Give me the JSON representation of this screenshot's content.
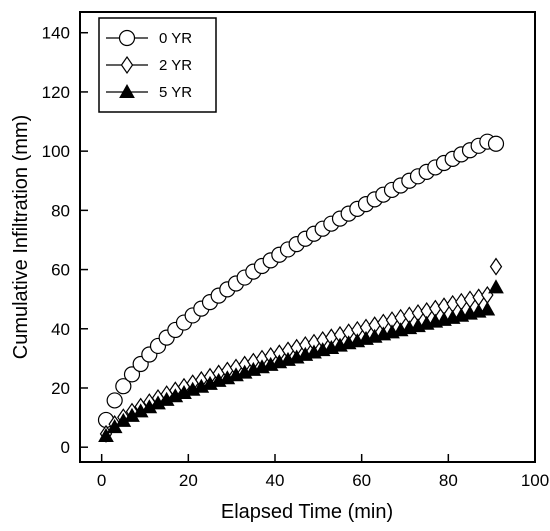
{
  "chart_data": {
    "type": "scatter",
    "xlabel": "Elapsed Time (min)",
    "ylabel": "Cumulative Infiltration (mm)",
    "xlim": [
      -5,
      100
    ],
    "ylim": [
      -5,
      147
    ],
    "xticks": [
      0,
      20,
      40,
      60,
      80,
      100
    ],
    "yticks": [
      0,
      20,
      40,
      60,
      80,
      100,
      120,
      140
    ],
    "grid": false,
    "legend_position": "top-left",
    "x": [
      1,
      3,
      5,
      7,
      9,
      11,
      13,
      15,
      17,
      19,
      21,
      23,
      25,
      27,
      29,
      31,
      33,
      35,
      37,
      39,
      41,
      43,
      45,
      47,
      49,
      51,
      53,
      55,
      57,
      59,
      61,
      63,
      65,
      67,
      69,
      71,
      73,
      75,
      77,
      79,
      81,
      83,
      85,
      87,
      89,
      91
    ],
    "series": [
      {
        "name": "0 YR",
        "marker": "circle-open",
        "values": [
          9.2,
          15.8,
          20.6,
          24.6,
          28.1,
          31.3,
          34.2,
          37.0,
          39.6,
          42.1,
          44.5,
          46.8,
          49.0,
          51.2,
          53.3,
          55.3,
          57.3,
          59.3,
          61.2,
          63.1,
          65.0,
          66.8,
          68.6,
          70.4,
          72.1,
          73.8,
          75.5,
          77.2,
          78.9,
          80.5,
          82.1,
          83.7,
          85.3,
          86.9,
          88.4,
          90.0,
          91.5,
          93.0,
          94.5,
          96.0,
          97.4,
          98.9,
          100.3,
          101.8,
          103.2,
          102.5
        ]
      },
      {
        "name": "2 YR",
        "marker": "diamond-open",
        "values": [
          4.5,
          7.8,
          10.1,
          12.0,
          13.7,
          15.2,
          16.6,
          17.9,
          19.2,
          20.4,
          21.6,
          22.7,
          23.8,
          24.9,
          25.9,
          26.9,
          27.9,
          28.9,
          29.9,
          30.8,
          31.7,
          32.7,
          33.6,
          34.5,
          35.3,
          36.2,
          37.1,
          37.9,
          38.8,
          39.6,
          40.4,
          41.2,
          42.1,
          42.9,
          43.7,
          44.5,
          45.3,
          46.0,
          46.8,
          47.6,
          48.4,
          49.1,
          49.9,
          50.6,
          51.4,
          61.0
        ]
      },
      {
        "name": "5 YR",
        "marker": "triangle-filled",
        "values": [
          3.8,
          6.8,
          8.9,
          10.6,
          12.1,
          13.5,
          14.8,
          16.0,
          17.2,
          18.3,
          19.4,
          20.4,
          21.4,
          22.4,
          23.3,
          24.3,
          25.2,
          26.1,
          27.0,
          27.8,
          28.7,
          29.5,
          30.3,
          31.2,
          32.0,
          32.8,
          33.5,
          34.3,
          35.1,
          35.8,
          36.6,
          37.3,
          38.1,
          38.8,
          39.5,
          40.2,
          40.9,
          41.7,
          42.4,
          43.0,
          43.7,
          44.4,
          45.1,
          45.8,
          46.5,
          54.0
        ]
      }
    ]
  }
}
